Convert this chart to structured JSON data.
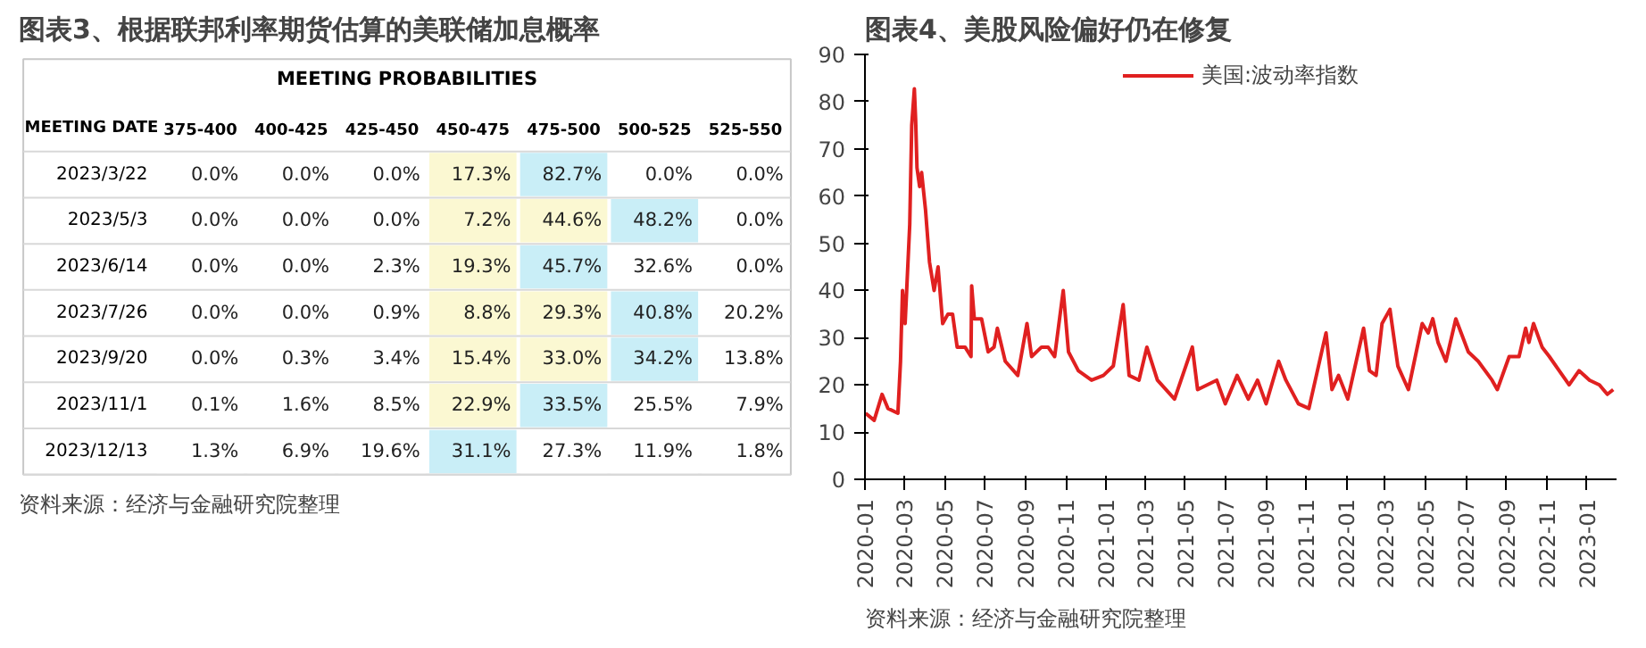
{
  "chart_data": [
    {
      "type": "heatmap",
      "title": "图表3、根据联邦利率期货估算的美联储加息概率",
      "subtitle": "MEETING PROBABILITIES",
      "ylabel": "MEETING DATE",
      "categories": [
        "375-400",
        "400-425",
        "425-450",
        "450-475",
        "475-500",
        "500-525",
        "525-550"
      ],
      "y_categories": [
        "2023/3/22",
        "2023/5/3",
        "2023/6/14",
        "2023/7/26",
        "2023/9/20",
        "2023/11/1",
        "2023/12/13"
      ],
      "cells": [
        [
          0.0,
          0.0,
          0.0,
          17.3,
          82.7,
          0.0,
          0.0
        ],
        [
          0.0,
          0.0,
          0.0,
          7.2,
          44.6,
          48.2,
          0.0
        ],
        [
          0.0,
          0.0,
          2.3,
          19.3,
          45.7,
          32.6,
          0.0
        ],
        [
          0.0,
          0.0,
          0.9,
          8.8,
          29.3,
          40.8,
          20.2
        ],
        [
          0.0,
          0.3,
          3.4,
          15.4,
          33.0,
          34.2,
          13.8
        ],
        [
          0.1,
          1.6,
          8.5,
          22.9,
          33.5,
          25.5,
          7.9
        ],
        [
          1.3,
          6.9,
          19.6,
          31.1,
          27.3,
          11.9,
          1.8
        ]
      ],
      "cell_labels": [
        [
          "0.0%",
          "0.0%",
          "0.0%",
          "17.3%",
          "82.7%",
          "0.0%",
          "0.0%"
        ],
        [
          "0.0%",
          "0.0%",
          "0.0%",
          "7.2%",
          "44.6%",
          "48.2%",
          "0.0%"
        ],
        [
          "0.0%",
          "0.0%",
          "2.3%",
          "19.3%",
          "45.7%",
          "32.6%",
          "0.0%"
        ],
        [
          "0.0%",
          "0.0%",
          "0.9%",
          "8.8%",
          "29.3%",
          "40.8%",
          "20.2%"
        ],
        [
          "0.0%",
          "0.3%",
          "3.4%",
          "15.4%",
          "33.0%",
          "34.2%",
          "13.8%"
        ],
        [
          "0.1%",
          "1.6%",
          "8.5%",
          "22.9%",
          "33.5%",
          "25.5%",
          "7.9%"
        ],
        [
          "1.3%",
          "6.9%",
          "19.6%",
          "31.1%",
          "27.3%",
          "11.9%",
          "1.8%"
        ]
      ],
      "colors": [
        [
          "#ffffff",
          "#ffffff",
          "#ffffff",
          "#fbf8d2",
          "#c9eef7",
          "#ffffff",
          "#ffffff"
        ],
        [
          "#ffffff",
          "#ffffff",
          "#ffffff",
          "#fbf8d2",
          "#fbf8d2",
          "#c9eef7",
          "#ffffff"
        ],
        [
          "#ffffff",
          "#ffffff",
          "#ffffff",
          "#fbf8d2",
          "#c9eef7",
          "#ffffff",
          "#ffffff"
        ],
        [
          "#ffffff",
          "#ffffff",
          "#ffffff",
          "#fbf8d2",
          "#fbf8d2",
          "#c9eef7",
          "#ffffff"
        ],
        [
          "#ffffff",
          "#ffffff",
          "#ffffff",
          "#fbf8d2",
          "#fbf8d2",
          "#c9eef7",
          "#ffffff"
        ],
        [
          "#ffffff",
          "#ffffff",
          "#ffffff",
          "#fbf8d2",
          "#c9eef7",
          "#ffffff",
          "#ffffff"
        ],
        [
          "#ffffff",
          "#ffffff",
          "#ffffff",
          "#c9eef7",
          "#ffffff",
          "#ffffff",
          "#ffffff"
        ]
      ],
      "annotations": [
        "资料来源：经济与金融研究院整理"
      ]
    },
    {
      "type": "line",
      "title": "图表4、美股风险偏好仍在修复",
      "x": [
        "2020-01-02",
        "2020-01-15",
        "2020-01-27",
        "2020-02-05",
        "2020-02-20",
        "2020-02-24",
        "2020-02-27",
        "2020-03-02",
        "2020-03-09",
        "2020-03-12",
        "2020-03-16",
        "2020-03-18",
        "2020-03-20",
        "2020-03-24",
        "2020-03-27",
        "2020-04-02",
        "2020-04-08",
        "2020-04-15",
        "2020-04-21",
        "2020-04-28",
        "2020-05-06",
        "2020-05-13",
        "2020-05-20",
        "2020-06-01",
        "2020-06-10",
        "2020-06-11",
        "2020-06-15",
        "2020-06-26",
        "2020-07-06",
        "2020-07-15",
        "2020-07-20",
        "2020-08-01",
        "2020-08-20",
        "2020-09-03",
        "2020-09-10",
        "2020-09-25",
        "2020-10-05",
        "2020-10-15",
        "2020-10-28",
        "2020-11-05",
        "2020-11-20",
        "2020-12-10",
        "2020-12-28",
        "2021-01-12",
        "2021-01-27",
        "2021-02-05",
        "2021-02-20",
        "2021-03-04",
        "2021-03-20",
        "2021-04-15",
        "2021-05-12",
        "2021-05-20",
        "2021-06-18",
        "2021-07-01",
        "2021-07-19",
        "2021-08-05",
        "2021-08-19",
        "2021-09-01",
        "2021-09-20",
        "2021-10-01",
        "2021-10-20",
        "2021-11-05",
        "2021-11-26",
        "2021-12-01",
        "2021-12-10",
        "2021-12-20",
        "2022-01-03",
        "2022-01-27",
        "2022-02-05",
        "2022-02-15",
        "2022-02-24",
        "2022-03-08",
        "2022-03-20",
        "2022-04-05",
        "2022-04-26",
        "2022-05-05",
        "2022-05-12",
        "2022-05-20",
        "2022-06-01",
        "2022-06-16",
        "2022-07-05",
        "2022-07-20",
        "2022-08-10",
        "2022-08-18",
        "2022-09-05",
        "2022-09-20",
        "2022-09-30",
        "2022-10-05",
        "2022-10-12",
        "2022-10-25",
        "2022-11-05",
        "2022-11-20",
        "2022-12-05",
        "2022-12-20",
        "2023-01-05",
        "2023-01-20",
        "2023-02-01",
        "2023-02-10"
      ],
      "series": [
        {
          "name": "美国:波动率指数",
          "color": "#e02020",
          "values": [
            14,
            12.5,
            18,
            15,
            14,
            25,
            40,
            33,
            54,
            75,
            82.7,
            76,
            66,
            62,
            65,
            57,
            46,
            40,
            45,
            33,
            35,
            35,
            28,
            28,
            26,
            41,
            34,
            34,
            27,
            28,
            32,
            25,
            22,
            33,
            26,
            28,
            28,
            26,
            40,
            27,
            23,
            21,
            22,
            24,
            37,
            22,
            21,
            28,
            21,
            17,
            28,
            19,
            21,
            16,
            22,
            17,
            21,
            16,
            25,
            21,
            16,
            15,
            28,
            31,
            19,
            22,
            17,
            32,
            23,
            22,
            33,
            36,
            24,
            19,
            33,
            31,
            34,
            29,
            25,
            34,
            27,
            25,
            21,
            19,
            26,
            26,
            32,
            29,
            33,
            28,
            26,
            23,
            20,
            23,
            21,
            20,
            18,
            19
          ]
        }
      ],
      "xlim": [
        "2020-01-01",
        "2023-02-15"
      ],
      "xticks": [
        "2020-01",
        "2020-03",
        "2020-05",
        "2020-07",
        "2020-09",
        "2020-11",
        "2021-01",
        "2021-03",
        "2021-05",
        "2021-07",
        "2021-09",
        "2021-11",
        "2022-01",
        "2022-03",
        "2022-05",
        "2022-07",
        "2022-09",
        "2022-11",
        "2023-01"
      ],
      "ylim": [
        0,
        90
      ],
      "yticks": [
        0,
        10,
        20,
        30,
        40,
        50,
        60,
        70,
        80,
        90
      ],
      "grid": false,
      "legend": "top",
      "line_style": "solid",
      "annotations": [
        "资料来源：经济与金融研究院整理"
      ]
    }
  ]
}
